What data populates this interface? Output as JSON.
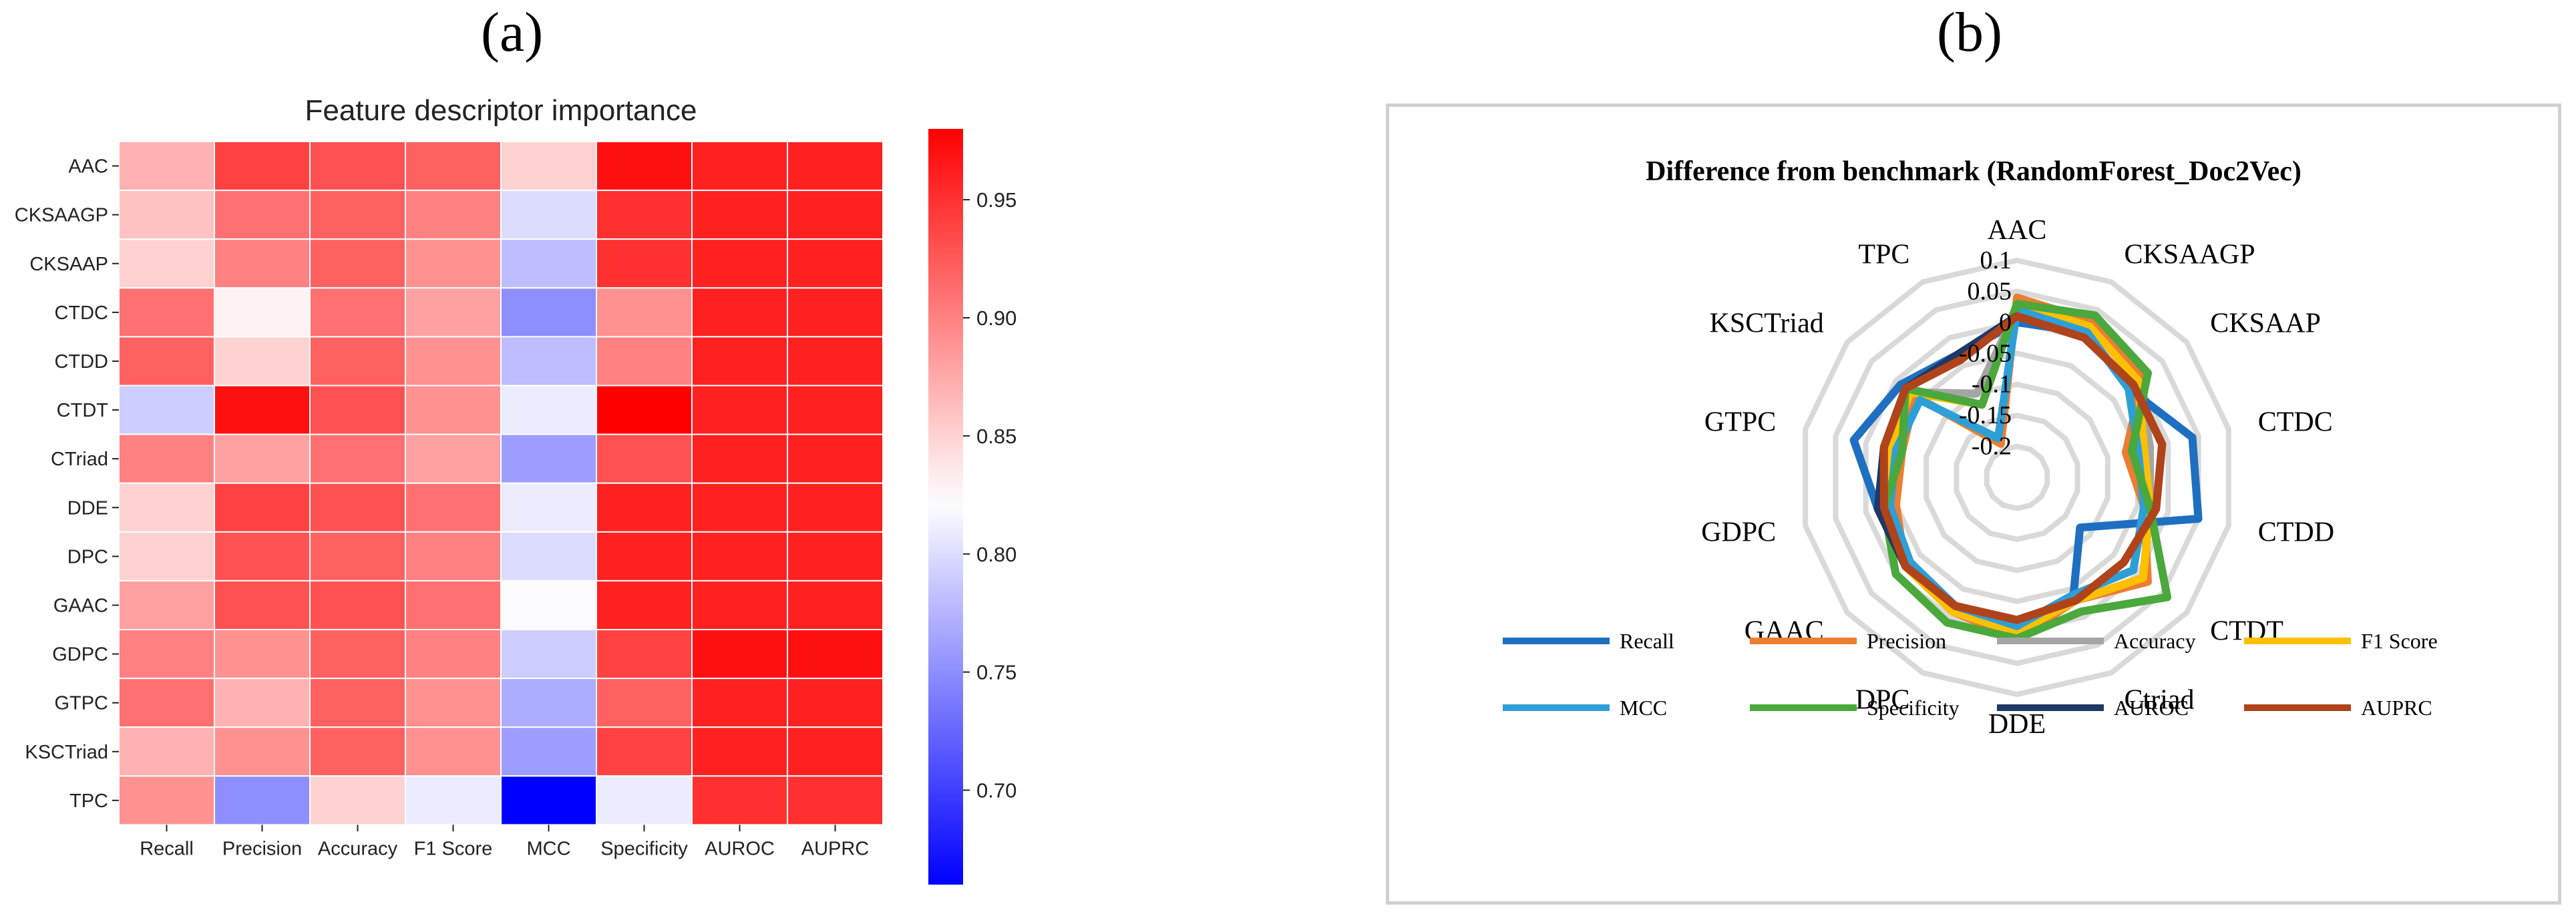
{
  "panels": {
    "a_label": "(a)",
    "b_label": "(b)"
  },
  "colors": {
    "heat_low": "#0000ff",
    "heat_mid": "#ffffff",
    "heat_high": "#ff0000",
    "Recall": "#1f6fc1",
    "Precision": "#ed7d31",
    "Accuracy": "#a5a5a5",
    "F1 Score": "#ffc000",
    "MCC": "#2e9fd6",
    "Specificity": "#4aa83c",
    "AUROC": "#1f3864",
    "AUPRC": "#b0431a"
  },
  "chart_data": [
    {
      "type": "heatmap",
      "title": "Feature descriptor importance",
      "rows": [
        "AAC",
        "CKSAAGP",
        "CKSAAP",
        "CTDC",
        "CTDD",
        "CTDT",
        "CTriad",
        "DDE",
        "DPC",
        "GAAC",
        "GDPC",
        "GTPC",
        "KSCTriad",
        "TPC"
      ],
      "columns": [
        "Recall",
        "Precision",
        "Accuracy",
        "F1 Score",
        "MCC",
        "Specificity",
        "AUROC",
        "AUPRC"
      ],
      "values": [
        [
          0.87,
          0.94,
          0.93,
          0.92,
          0.85,
          0.97,
          0.96,
          0.96
        ],
        [
          0.86,
          0.91,
          0.92,
          0.9,
          0.8,
          0.95,
          0.96,
          0.96
        ],
        [
          0.85,
          0.9,
          0.92,
          0.89,
          0.78,
          0.95,
          0.96,
          0.96
        ],
        [
          0.91,
          0.83,
          0.91,
          0.88,
          0.75,
          0.89,
          0.96,
          0.96
        ],
        [
          0.92,
          0.85,
          0.92,
          0.89,
          0.78,
          0.9,
          0.96,
          0.96
        ],
        [
          0.79,
          0.97,
          0.93,
          0.89,
          0.81,
          0.98,
          0.96,
          0.96
        ],
        [
          0.9,
          0.88,
          0.91,
          0.88,
          0.76,
          0.93,
          0.96,
          0.96
        ],
        [
          0.85,
          0.94,
          0.93,
          0.91,
          0.81,
          0.96,
          0.96,
          0.96
        ],
        [
          0.85,
          0.93,
          0.92,
          0.9,
          0.8,
          0.96,
          0.96,
          0.96
        ],
        [
          0.88,
          0.93,
          0.93,
          0.91,
          0.82,
          0.96,
          0.96,
          0.96
        ],
        [
          0.9,
          0.89,
          0.92,
          0.9,
          0.79,
          0.94,
          0.97,
          0.97
        ],
        [
          0.91,
          0.87,
          0.92,
          0.89,
          0.77,
          0.92,
          0.96,
          0.96
        ],
        [
          0.87,
          0.89,
          0.92,
          0.89,
          0.76,
          0.94,
          0.96,
          0.96
        ],
        [
          0.89,
          0.75,
          0.85,
          0.81,
          0.66,
          0.81,
          0.95,
          0.95
        ]
      ],
      "colorbar": {
        "min": 0.66,
        "max": 0.98,
        "ticks": [
          "0.95",
          "0.90",
          "0.85",
          "0.80",
          "0.75",
          "0.70"
        ],
        "tick_values": [
          0.95,
          0.9,
          0.85,
          0.8,
          0.75,
          0.7
        ]
      }
    },
    {
      "type": "radar",
      "title": "Difference from benchmark (RandomForest_Doc2Vec)",
      "axes": [
        "AAC",
        "CKSAAGP",
        "CKSAAP",
        "CTDC",
        "CTDD",
        "CTDT",
        "Ctriad",
        "DDE",
        "DPC",
        "GAAC",
        "GDPC",
        "GTPC",
        "KSCTriad",
        "TPC"
      ],
      "rmin": -0.25,
      "rmax": 0.1,
      "ring_values": [
        0.1,
        0.05,
        0,
        -0.05,
        -0.1,
        -0.15,
        -0.2
      ],
      "ring_labels": [
        "0.1",
        "0.05",
        "0",
        "-0.05",
        "-0.1",
        "-0.15",
        "-0.2"
      ],
      "series": [
        {
          "name": "Recall",
          "values": [
            0.0,
            0.01,
            -0.02,
            0.04,
            0.05,
            -0.12,
            -0.04,
            -0.01,
            -0.02,
            -0.03,
            -0.02,
            0.02,
            -0.01,
            -0.03
          ]
        },
        {
          "name": "Precision",
          "values": [
            0.04,
            0.03,
            0.01,
            -0.07,
            -0.04,
            0.02,
            -0.03,
            0.01,
            -0.01,
            -0.02,
            -0.05,
            -0.06,
            -0.04,
            -0.19
          ]
        },
        {
          "name": "Accuracy",
          "values": [
            0.02,
            0.02,
            0.0,
            -0.03,
            -0.03,
            0.01,
            -0.03,
            0.0,
            -0.01,
            -0.02,
            -0.03,
            -0.04,
            -0.03,
            -0.1
          ]
        },
        {
          "name": "F1 Score",
          "values": [
            0.03,
            0.02,
            0.0,
            -0.04,
            -0.03,
            0.01,
            -0.03,
            0.0,
            -0.01,
            -0.02,
            -0.04,
            -0.04,
            -0.03,
            -0.12
          ]
        },
        {
          "name": "MCC",
          "values": [
            0.02,
            0.01,
            -0.02,
            -0.05,
            -0.04,
            -0.01,
            -0.04,
            -0.01,
            -0.02,
            -0.03,
            -0.04,
            -0.05,
            -0.05,
            -0.18
          ]
        },
        {
          "name": "Specificity",
          "values": [
            0.03,
            0.04,
            0.02,
            -0.06,
            -0.03,
            0.06,
            -0.01,
            0.01,
            0.01,
            0.0,
            -0.03,
            -0.06,
            -0.02,
            -0.12
          ]
        },
        {
          "name": "AUROC",
          "values": [
            0.01,
            0.0,
            -0.01,
            -0.01,
            -0.02,
            -0.03,
            -0.03,
            -0.02,
            -0.02,
            -0.02,
            -0.02,
            -0.03,
            -0.02,
            -0.03
          ]
        },
        {
          "name": "AUPRC",
          "values": [
            0.01,
            0.0,
            -0.01,
            -0.01,
            -0.02,
            -0.03,
            -0.03,
            -0.02,
            -0.02,
            -0.02,
            -0.03,
            -0.03,
            -0.02,
            -0.04
          ]
        }
      ],
      "legend_position": "bottom"
    }
  ]
}
